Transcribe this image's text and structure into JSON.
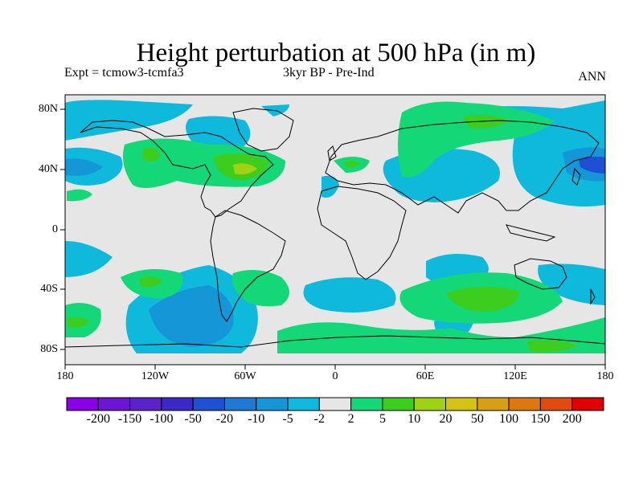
{
  "title": "Height perturbation at 500 hPa (in m)",
  "subtitle_left": "Expt = tcmow3-tcmfa3",
  "subtitle_center": "3kyr BP - Pre-Ind",
  "subtitle_right": "ANN",
  "y_ticks": [
    "80N",
    "40N",
    "0",
    "40S",
    "80S"
  ],
  "x_ticks": [
    "180",
    "120W",
    "60W",
    "0",
    "60E",
    "120E",
    "180"
  ],
  "colorbar": {
    "labels": [
      "-200",
      "-150",
      "-100",
      "-50",
      "-20",
      "-10",
      "-5",
      "-2",
      "2",
      "5",
      "10",
      "20",
      "50",
      "100",
      "150",
      "200"
    ],
    "colors": [
      "#8a00e6",
      "#6e14d4",
      "#5a22c8",
      "#3c28c8",
      "#1d50d2",
      "#1f78d2",
      "#1496d7",
      "#0fb9dc",
      "#e6e6e6",
      "#14d778",
      "#3ccd1e",
      "#9fd214",
      "#d2c314",
      "#d7a014",
      "#dc780f",
      "#e14b0f",
      "#e10000"
    ]
  },
  "map_colors": {
    "background": "#e6e6e6",
    "coast": "#000000"
  }
}
